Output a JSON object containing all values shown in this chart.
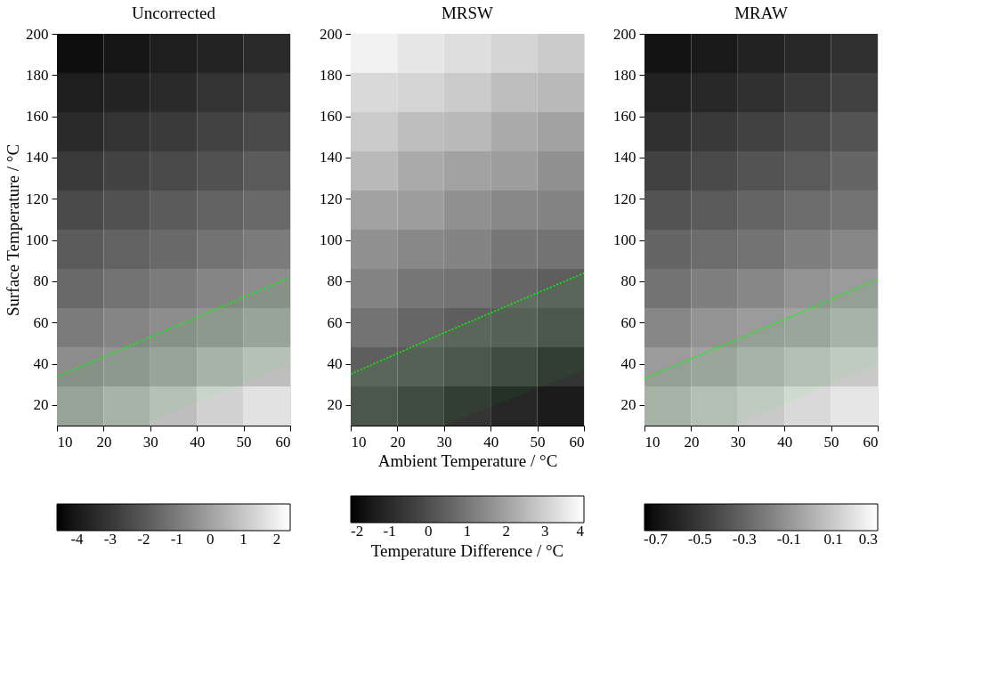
{
  "chart_data": [
    {
      "type": "heatmap",
      "title": "Uncorrected",
      "ylabel": "Surface Temperature / °C",
      "xlim": [
        10,
        60
      ],
      "ylim": [
        10,
        200
      ],
      "xticks": [
        10,
        20,
        30,
        40,
        50,
        60
      ],
      "yticks": [
        20,
        40,
        60,
        80,
        100,
        120,
        140,
        160,
        180,
        200
      ],
      "grid": false,
      "x": [
        15,
        25,
        35,
        45,
        55
      ],
      "y": [
        190.5,
        171.5,
        152.5,
        133.5,
        114.5,
        95.5,
        76.5,
        57.5,
        38.5,
        19.5
      ],
      "cells": [
        [
          -4.3,
          -4.1,
          -3.8,
          -3.6,
          -3.4
        ],
        [
          -3.8,
          -3.6,
          -3.4,
          -3.1,
          -2.9
        ],
        [
          -3.4,
          -3.1,
          -2.9,
          -2.6,
          -2.4
        ],
        [
          -2.9,
          -2.6,
          -2.4,
          -2.2,
          -1.9
        ],
        [
          -2.4,
          -2.2,
          -1.9,
          -1.7,
          -1.5
        ],
        [
          -1.9,
          -1.7,
          -1.5,
          -1.2,
          -1.0
        ],
        [
          -1.5,
          -1.2,
          -1.0,
          -0.7,
          -0.5
        ],
        [
          -1.0,
          -0.7,
          -0.5,
          -0.3,
          0.0
        ],
        [
          -0.5,
          -0.3,
          0.0,
          0.4,
          0.8
        ],
        [
          0.0,
          0.4,
          0.8,
          1.3,
          1.7
        ]
      ],
      "clim": [
        -4.6,
        2.4
      ],
      "cticks": [
        -4,
        -3,
        -2,
        -1,
        0,
        1,
        2
      ],
      "series": [
        {
          "type": "line",
          "color": "#00ff00",
          "line_style": "dotted",
          "x": [
            10,
            28,
            60
          ],
          "values": [
            34,
            51,
            82
          ],
          "lower": [
            10,
            10,
            40
          ],
          "upper": [
            34,
            51,
            82
          ]
        }
      ]
    },
    {
      "type": "heatmap",
      "title": "MRSW",
      "xlabel": "Ambient Temperature / °C",
      "clabel": "Temperature Difference / °C",
      "xlim": [
        10,
        60
      ],
      "ylim": [
        10,
        200
      ],
      "xticks": [
        10,
        20,
        30,
        40,
        50,
        60
      ],
      "yticks": [
        20,
        40,
        60,
        80,
        100,
        120,
        140,
        160,
        180,
        200
      ],
      "grid": false,
      "x": [
        15,
        25,
        35,
        45,
        55
      ],
      "y": [
        190.5,
        171.5,
        152.5,
        133.5,
        114.5,
        95.5,
        76.5,
        57.5,
        38.5,
        19.5
      ],
      "cells": [
        [
          3.7,
          3.5,
          3.3,
          3.1,
          2.9
        ],
        [
          3.2,
          3.1,
          2.9,
          2.6,
          2.5
        ],
        [
          2.9,
          2.6,
          2.5,
          2.2,
          2.0
        ],
        [
          2.5,
          2.2,
          2.0,
          1.9,
          1.6
        ],
        [
          2.0,
          1.9,
          1.6,
          1.4,
          1.3
        ],
        [
          1.6,
          1.4,
          1.3,
          1.0,
          0.9
        ],
        [
          1.3,
          1.0,
          0.9,
          0.6,
          0.4
        ],
        [
          0.9,
          0.6,
          0.4,
          0.3,
          0.0
        ],
        [
          0.4,
          0.3,
          0.0,
          -0.3,
          -0.7
        ],
        [
          0.0,
          -0.3,
          -0.7,
          -1.1,
          -1.4
        ]
      ],
      "clim": [
        -2,
        4
      ],
      "cticks": [
        -2,
        -1,
        0,
        1,
        2,
        3,
        4
      ],
      "series": [
        {
          "type": "line",
          "color": "#00ff00",
          "line_style": "dotted",
          "x": [
            10,
            30,
            60
          ],
          "values": [
            35,
            55,
            84
          ],
          "lower": [
            10,
            10,
            37
          ],
          "upper": [
            35,
            55,
            84
          ]
        }
      ]
    },
    {
      "type": "heatmap",
      "title": "MRAW",
      "xlim": [
        10,
        60
      ],
      "ylim": [
        10,
        200
      ],
      "xticks": [
        10,
        20,
        30,
        40,
        50,
        60
      ],
      "yticks": [
        20,
        40,
        60,
        80,
        100,
        120,
        140,
        160,
        180,
        200
      ],
      "grid": false,
      "x": [
        15,
        25,
        35,
        45,
        55
      ],
      "y": [
        190.5,
        171.5,
        152.5,
        133.5,
        114.5,
        95.5,
        76.5,
        57.5,
        38.5,
        19.5
      ],
      "cells": [
        [
          -0.69,
          -0.66,
          -0.61,
          -0.58,
          -0.54
        ],
        [
          -0.61,
          -0.58,
          -0.54,
          -0.5,
          -0.46
        ],
        [
          -0.54,
          -0.5,
          -0.46,
          -0.42,
          -0.38
        ],
        [
          -0.46,
          -0.42,
          -0.38,
          -0.35,
          -0.3
        ],
        [
          -0.38,
          -0.35,
          -0.3,
          -0.27,
          -0.24
        ],
        [
          -0.3,
          -0.27,
          -0.24,
          -0.19,
          -0.16
        ],
        [
          -0.24,
          -0.19,
          -0.16,
          -0.11,
          -0.08
        ],
        [
          -0.16,
          -0.11,
          -0.08,
          -0.05,
          0.0
        ],
        [
          -0.08,
          -0.05,
          0.0,
          0.05,
          0.1
        ],
        [
          0.0,
          0.05,
          0.1,
          0.16,
          0.21
        ]
      ],
      "clim": [
        -0.75,
        0.3
      ],
      "cticks": [
        -0.7,
        -0.5,
        -0.3,
        -0.1,
        0.1,
        0.3
      ],
      "series": [
        {
          "type": "line",
          "color": "#00ff00",
          "line_style": "dotted",
          "x": [
            10,
            29,
            60
          ],
          "values": [
            33,
            51,
            81
          ],
          "lower": [
            10,
            10,
            40
          ],
          "upper": [
            33,
            51,
            81
          ]
        }
      ]
    }
  ]
}
